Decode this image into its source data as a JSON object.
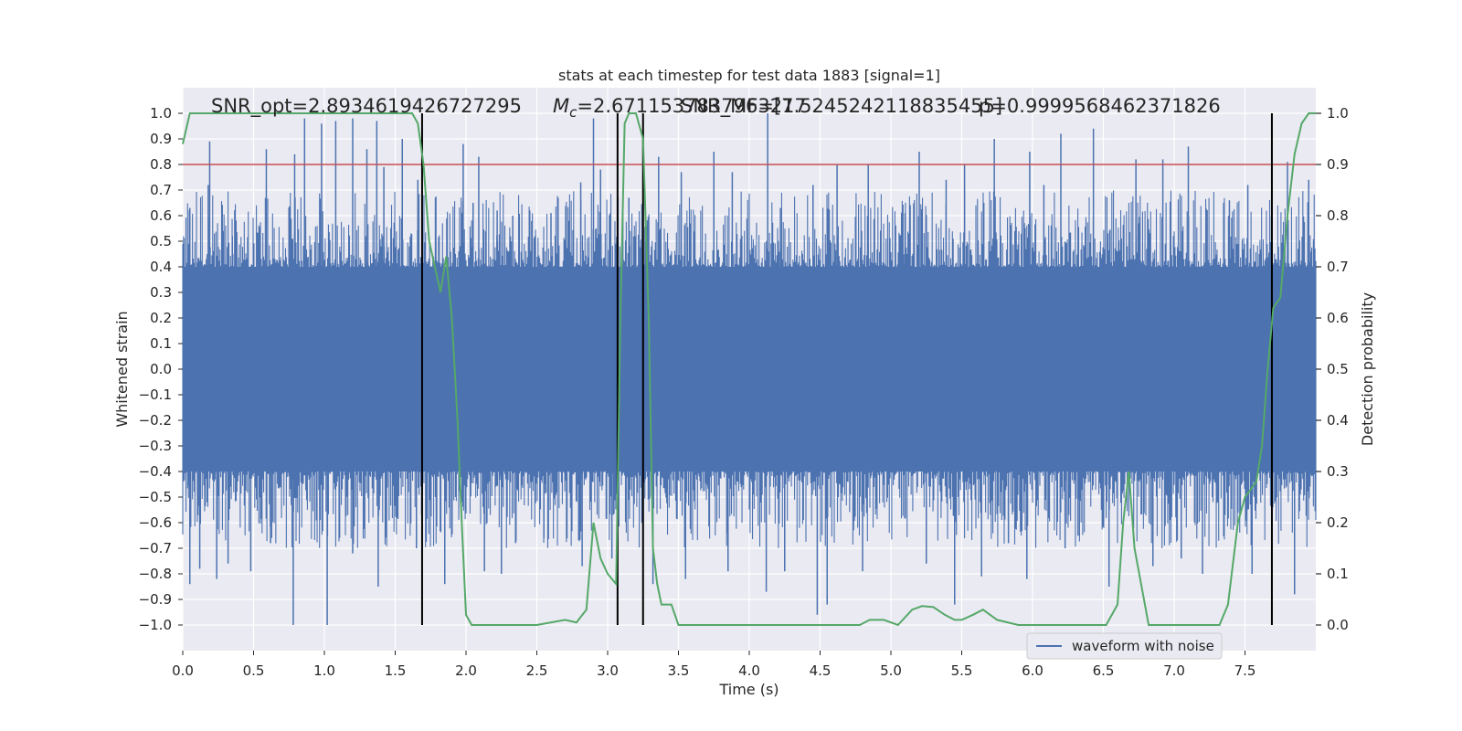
{
  "chart_data": {
    "type": "line",
    "title": "stats at each timestep for test data 1883 [signal=1]",
    "xlabel": "Time (s)",
    "ylabel": "Whitened strain",
    "y2label": "Detection probability",
    "xlim": [
      0.0,
      8.0
    ],
    "ylim": [
      -1.1,
      1.1
    ],
    "y2lim": [
      -0.05,
      1.05
    ],
    "xticks": [
      0.0,
      0.5,
      1.0,
      1.5,
      2.0,
      2.5,
      3.0,
      3.5,
      4.0,
      4.5,
      5.0,
      5.5,
      6.0,
      6.5,
      7.0,
      7.5
    ],
    "xtick_labels": [
      "0.0",
      "0.5",
      "1.0",
      "1.5",
      "2.0",
      "2.5",
      "3.0",
      "3.5",
      "4.0",
      "4.5",
      "5.0",
      "5.5",
      "6.0",
      "6.5",
      "7.0",
      "7.5"
    ],
    "yticks": [
      -1.0,
      -0.9,
      -0.8,
      -0.7,
      -0.6,
      -0.5,
      -0.4,
      -0.3,
      -0.2,
      -0.1,
      0.0,
      0.1,
      0.2,
      0.3,
      0.4,
      0.5,
      0.6,
      0.7,
      0.8,
      0.9,
      1.0
    ],
    "ytick_labels": [
      "−1.0",
      "−0.9",
      "−0.8",
      "−0.7",
      "−0.6",
      "−0.5",
      "−0.4",
      "−0.3",
      "−0.2",
      "−0.1",
      "0.0",
      "0.1",
      "0.2",
      "0.3",
      "0.4",
      "0.5",
      "0.6",
      "0.7",
      "0.8",
      "0.9",
      "1.0"
    ],
    "y2ticks": [
      0.0,
      0.1,
      0.2,
      0.3,
      0.4,
      0.5,
      0.6,
      0.7,
      0.8,
      0.9,
      1.0
    ],
    "y2tick_labels": [
      "0.0",
      "0.1",
      "0.2",
      "0.3",
      "0.4",
      "0.5",
      "0.6",
      "0.7",
      "0.8",
      "0.9",
      "1.0"
    ],
    "grid": true,
    "legend": {
      "position": "lower-right",
      "entries": [
        {
          "label": "waveform with noise",
          "color": "#4c72b0"
        }
      ]
    },
    "annotations": [
      "SNR_opt=2.8934619426727295",
      "M_c=2.6711537837963217",
      "SNR_MF=[7.5245242118835455]",
      "p=0.9999568462371826"
    ],
    "threshold": {
      "value": 0.9,
      "axis": "y2",
      "color": "#c44e52"
    },
    "vertical_lines": [
      1.69,
      3.07,
      3.25,
      7.69
    ],
    "series": [
      {
        "name": "waveform with noise",
        "axis": "y",
        "color": "#4c72b0",
        "kind": "dense-noise",
        "t_range": [
          0.0,
          8.0
        ],
        "core_amplitude": 0.4,
        "positive_peaks": [
          [
            0.05,
            0.63
          ],
          [
            0.18,
            0.72
          ],
          [
            0.19,
            0.89
          ],
          [
            0.35,
            0.52
          ],
          [
            0.59,
            0.86
          ],
          [
            0.79,
            0.84
          ],
          [
            0.86,
            0.98
          ],
          [
            0.98,
            0.96
          ],
          [
            1.08,
            0.97
          ],
          [
            1.2,
            0.98
          ],
          [
            1.3,
            0.86
          ],
          [
            1.37,
            0.97
          ],
          [
            1.42,
            0.79
          ],
          [
            1.55,
            0.9
          ],
          [
            1.66,
            0.74
          ],
          [
            1.98,
            0.88
          ],
          [
            2.05,
            0.65
          ],
          [
            2.09,
            0.83
          ],
          [
            2.22,
            0.62
          ],
          [
            2.33,
            0.6
          ],
          [
            2.45,
            0.62
          ],
          [
            2.6,
            0.61
          ],
          [
            2.81,
            0.73
          ],
          [
            2.9,
            0.98
          ],
          [
            2.95,
            0.78
          ],
          [
            3.15,
            0.67
          ],
          [
            3.36,
            0.83
          ],
          [
            3.52,
            0.77
          ],
          [
            3.75,
            0.85
          ],
          [
            3.88,
            0.77
          ],
          [
            4.13,
            1.0
          ],
          [
            4.22,
            0.63
          ],
          [
            4.45,
            0.72
          ],
          [
            4.62,
            0.8
          ],
          [
            4.84,
            0.8
          ],
          [
            5.1,
            0.61
          ],
          [
            5.2,
            0.85
          ],
          [
            5.39,
            0.74
          ],
          [
            5.52,
            0.8
          ],
          [
            5.73,
            0.9
          ],
          [
            5.98,
            0.85
          ],
          [
            6.08,
            0.72
          ],
          [
            6.2,
            0.92
          ],
          [
            6.43,
            0.94
          ],
          [
            6.73,
            0.82
          ],
          [
            6.92,
            0.82
          ],
          [
            7.1,
            0.87
          ],
          [
            7.39,
            0.66
          ],
          [
            7.52,
            0.72
          ],
          [
            7.8,
            0.81
          ],
          [
            7.95,
            0.74
          ]
        ],
        "negative_peaks": [
          [
            0.05,
            -0.84
          ],
          [
            0.12,
            -0.78
          ],
          [
            0.24,
            -0.82
          ],
          [
            0.32,
            -0.76
          ],
          [
            0.48,
            -0.79
          ],
          [
            0.62,
            -0.68
          ],
          [
            0.78,
            -1.0
          ],
          [
            1.02,
            -1.0
          ],
          [
            1.2,
            -0.72
          ],
          [
            1.38,
            -0.85
          ],
          [
            1.65,
            -0.7
          ],
          [
            1.85,
            -0.84
          ],
          [
            2.13,
            -0.79
          ],
          [
            2.25,
            -0.8
          ],
          [
            2.35,
            -0.68
          ],
          [
            2.55,
            -0.66
          ],
          [
            2.82,
            -0.77
          ],
          [
            3.03,
            -0.74
          ],
          [
            3.32,
            -0.84
          ],
          [
            3.55,
            -0.82
          ],
          [
            3.85,
            -0.79
          ],
          [
            4.12,
            -0.87
          ],
          [
            4.25,
            -0.79
          ],
          [
            4.48,
            -0.96
          ],
          [
            4.55,
            -0.92
          ],
          [
            4.8,
            -0.79
          ],
          [
            5.25,
            -0.76
          ],
          [
            5.45,
            -0.92
          ],
          [
            5.64,
            -0.81
          ],
          [
            5.83,
            -0.68
          ],
          [
            5.96,
            -0.82
          ],
          [
            6.23,
            -0.7
          ],
          [
            6.33,
            -0.65
          ],
          [
            6.54,
            -0.85
          ],
          [
            6.85,
            -0.77
          ],
          [
            7.05,
            -0.74
          ],
          [
            7.2,
            -0.8
          ],
          [
            7.55,
            -0.8
          ],
          [
            7.85,
            -0.88
          ]
        ]
      },
      {
        "name": "",
        "axis": "y2",
        "color": "#55a868",
        "x": [
          0.0,
          0.05,
          0.1,
          0.2,
          0.5,
          1.0,
          1.5,
          1.62,
          1.66,
          1.7,
          1.74,
          1.78,
          1.82,
          1.86,
          1.9,
          1.94,
          1.97,
          2.0,
          2.04,
          2.2,
          2.5,
          2.7,
          2.78,
          2.85,
          2.9,
          2.95,
          3.0,
          3.06,
          3.09,
          3.12,
          3.15,
          3.2,
          3.25,
          3.29,
          3.32,
          3.35,
          3.38,
          3.41,
          3.45,
          3.5,
          3.55,
          4.0,
          4.5,
          4.78,
          4.85,
          4.95,
          5.05,
          5.15,
          5.22,
          5.3,
          5.38,
          5.45,
          5.5,
          5.58,
          5.65,
          5.75,
          5.9,
          6.1,
          6.3,
          6.45,
          6.52,
          6.6,
          6.64,
          6.68,
          6.72,
          6.82,
          6.9,
          7.1,
          7.25,
          7.32,
          7.38,
          7.45,
          7.5,
          7.58,
          7.62,
          7.66,
          7.7,
          7.75,
          7.8,
          7.85,
          7.9,
          7.95,
          8.0
        ],
        "y": [
          0.94,
          1.0,
          1.0,
          1.0,
          1.0,
          1.0,
          1.0,
          1.0,
          0.98,
          0.9,
          0.75,
          0.7,
          0.65,
          0.72,
          0.6,
          0.4,
          0.2,
          0.02,
          0.0,
          0.0,
          0.0,
          0.01,
          0.005,
          0.03,
          0.2,
          0.13,
          0.1,
          0.08,
          0.6,
          0.98,
          1.0,
          1.0,
          0.95,
          0.6,
          0.15,
          0.08,
          0.04,
          0.04,
          0.04,
          0.0,
          0.0,
          0.0,
          0.0,
          0.0,
          0.01,
          0.01,
          0.0,
          0.03,
          0.037,
          0.035,
          0.02,
          0.01,
          0.01,
          0.02,
          0.03,
          0.01,
          0.0,
          0.0,
          0.0,
          0.0,
          0.0,
          0.04,
          0.2,
          0.3,
          0.15,
          0.0,
          0.0,
          0.0,
          0.0,
          0.0,
          0.04,
          0.2,
          0.25,
          0.28,
          0.35,
          0.5,
          0.62,
          0.64,
          0.8,
          0.92,
          0.98,
          1.0,
          1.0
        ]
      }
    ]
  }
}
